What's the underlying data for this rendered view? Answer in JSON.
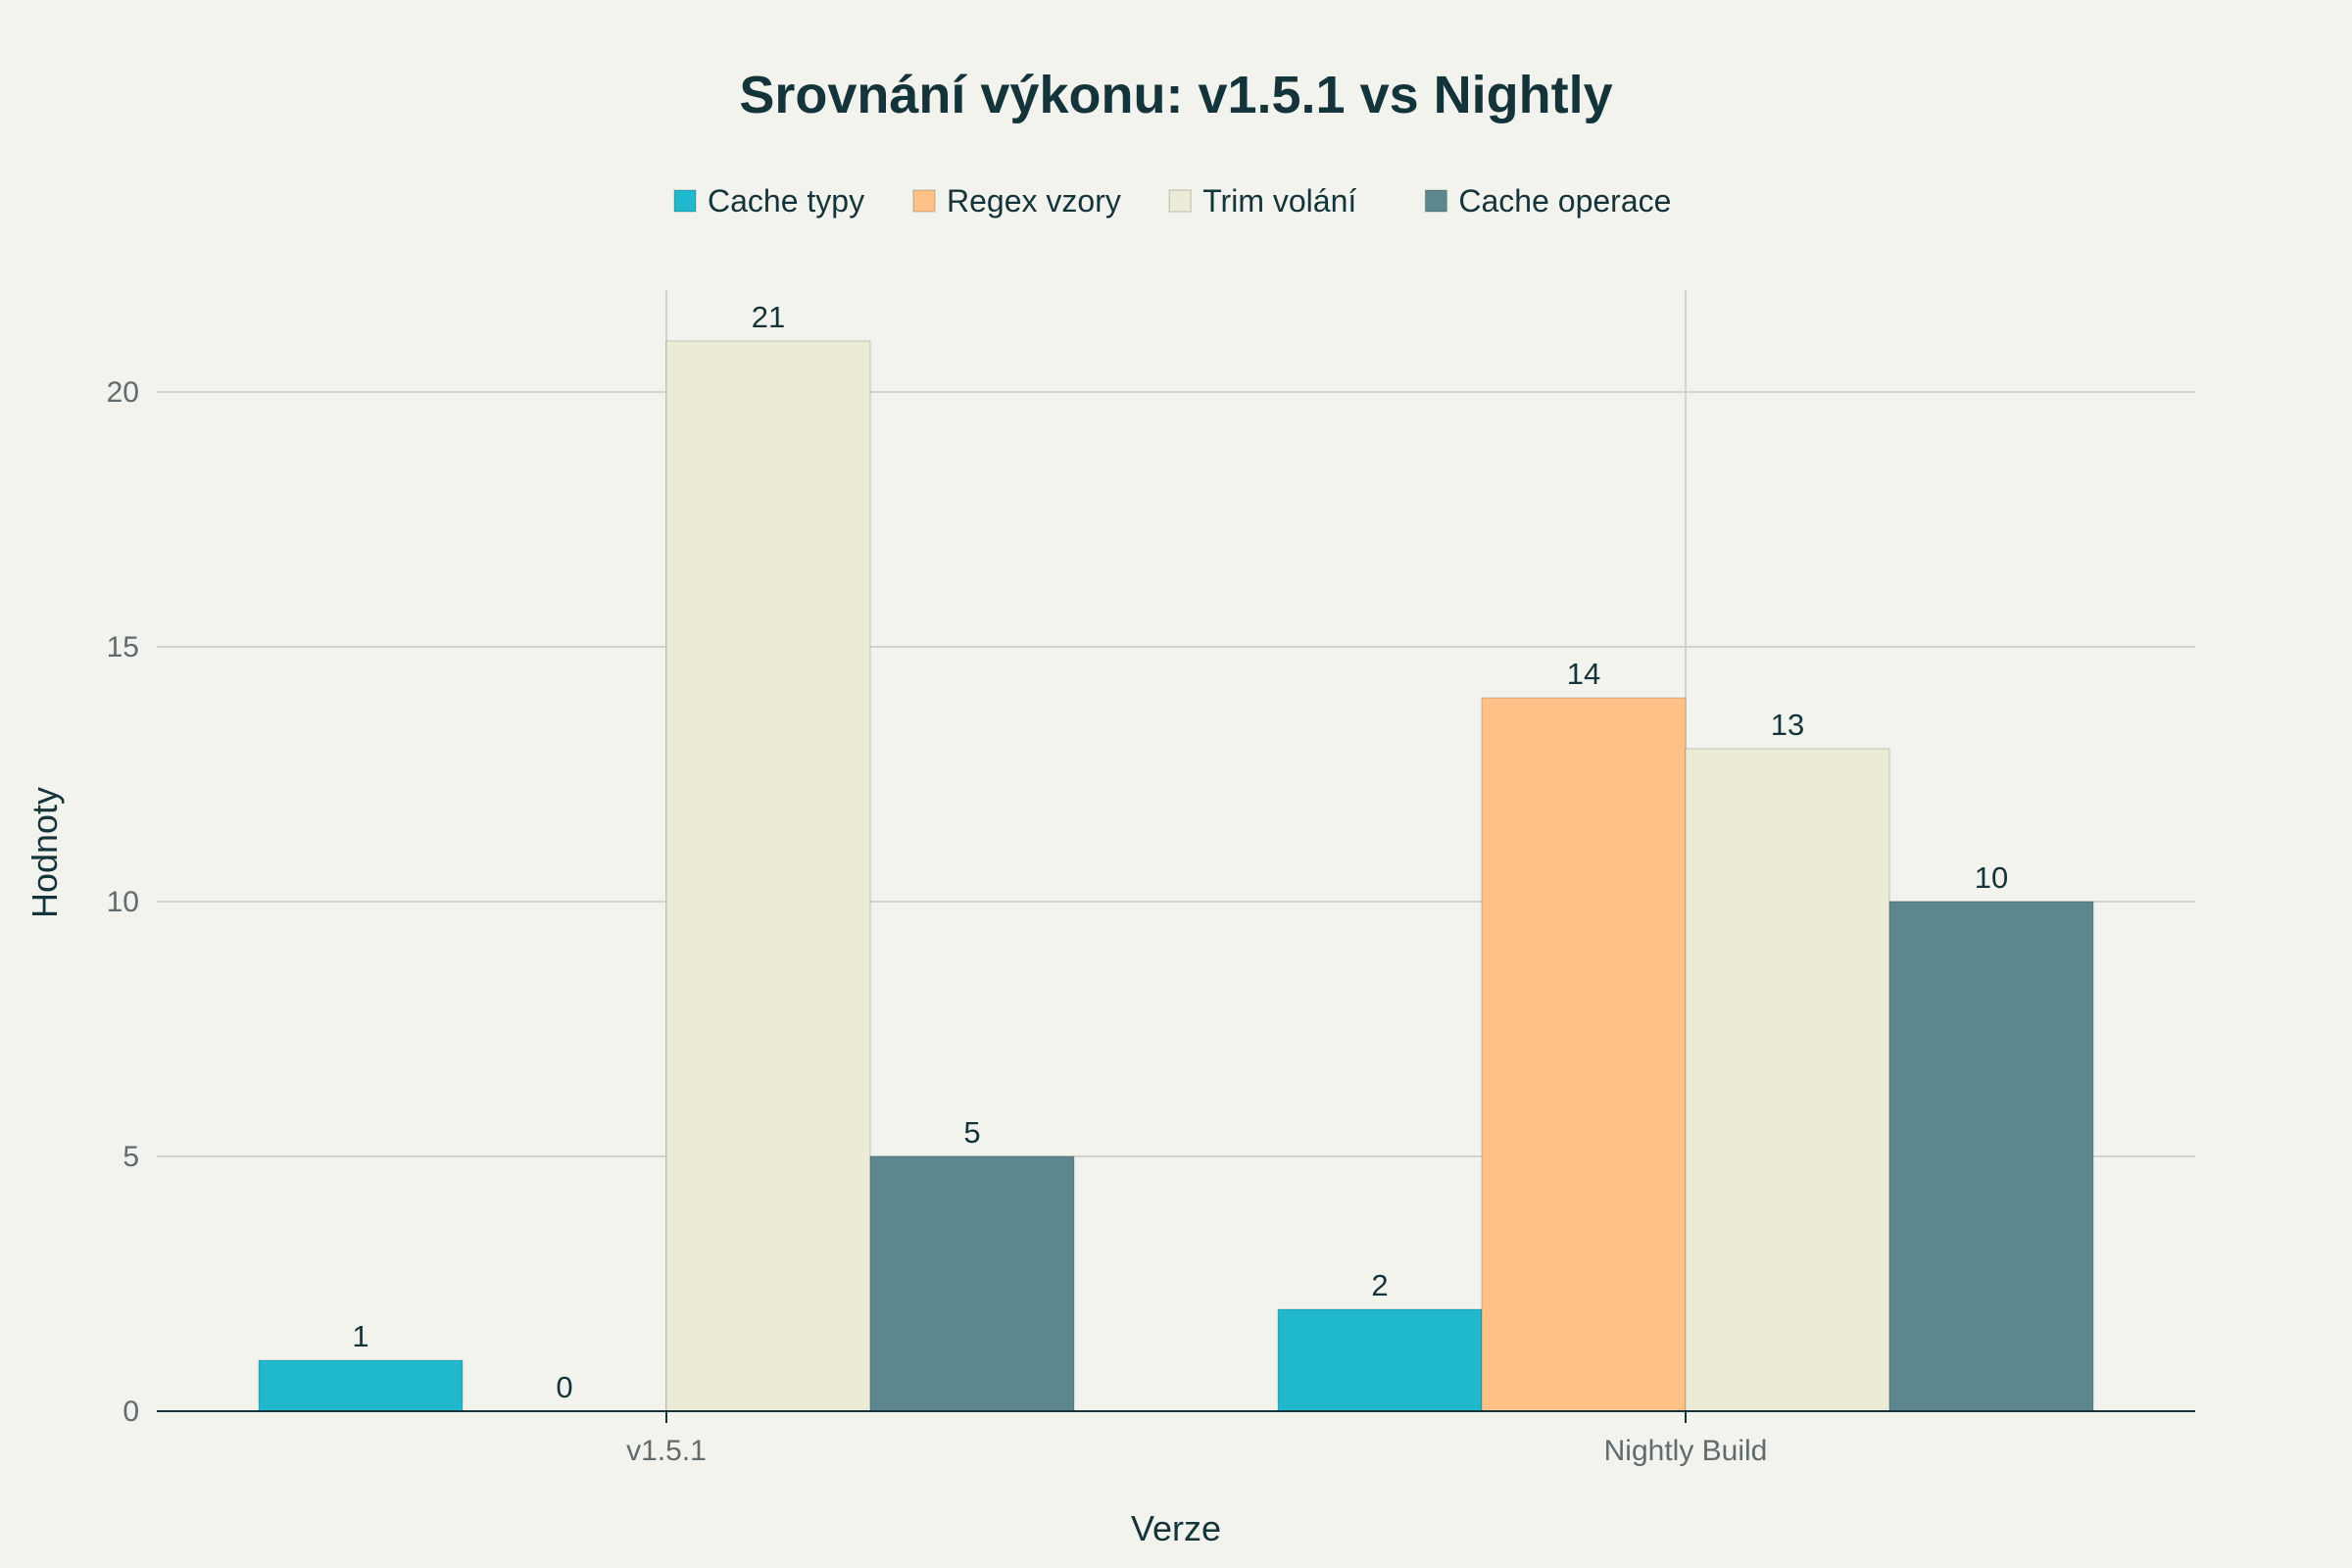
{
  "chart_data": {
    "type": "bar",
    "title": "Srovnání výkonu: v1.5.1 vs Nightly",
    "xlabel": "Verze",
    "ylabel": "Hodnoty",
    "categories": [
      "v1.5.1",
      "Nightly Build"
    ],
    "series": [
      {
        "name": "Cache typy",
        "values": [
          1,
          2
        ],
        "color": "#1fb8cd"
      },
      {
        "name": "Regex vzory",
        "values": [
          0,
          14
        ],
        "color": "#ffc185"
      },
      {
        "name": "Trim volání",
        "values": [
          21,
          13
        ],
        "color": "#eceBd5"
      },
      {
        "name": "Cache operace",
        "values": [
          5,
          10
        ],
        "color": "#5d878f"
      }
    ],
    "ylim": [
      0,
      22
    ],
    "yticks": [
      0,
      5,
      10,
      15,
      20
    ],
    "grid": true,
    "legend_position": "top-center",
    "data_labels": true
  }
}
